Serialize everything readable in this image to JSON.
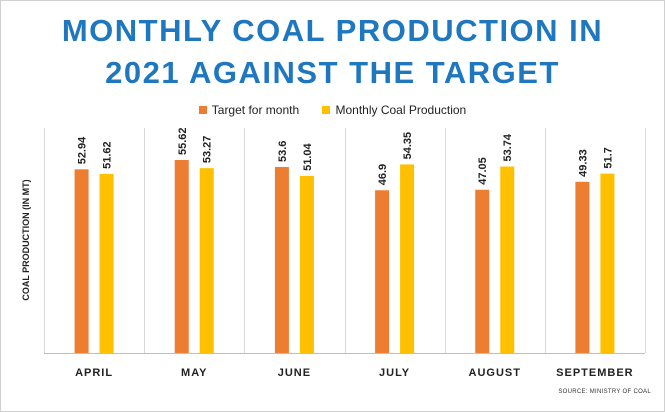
{
  "chart_data": {
    "type": "bar",
    "title_line1": "MONTHLY COAL PRODUCTION IN",
    "title_line2": "2021 AGAINST THE TARGET",
    "xlabel": "",
    "ylabel": "COAL PRODUCTION (IN MT)",
    "ylim": [
      0,
      55.62
    ],
    "grid": false,
    "legend_position": "top-center",
    "categories": [
      "APRIL",
      "MAY",
      "JUNE",
      "JULY",
      "AUGUST",
      "SEPTEMBER"
    ],
    "series": [
      {
        "name": "Target for month",
        "color": "#ed7d31",
        "values": [
          52.94,
          55.62,
          53.6,
          46.9,
          47.05,
          49.33
        ]
      },
      {
        "name": "Monthly Coal Production",
        "color": "#ffc000",
        "values": [
          51.62,
          53.27,
          51.04,
          54.35,
          53.74,
          51.7
        ]
      }
    ],
    "source": "SOURCE: MINISTRY OF COAL"
  }
}
